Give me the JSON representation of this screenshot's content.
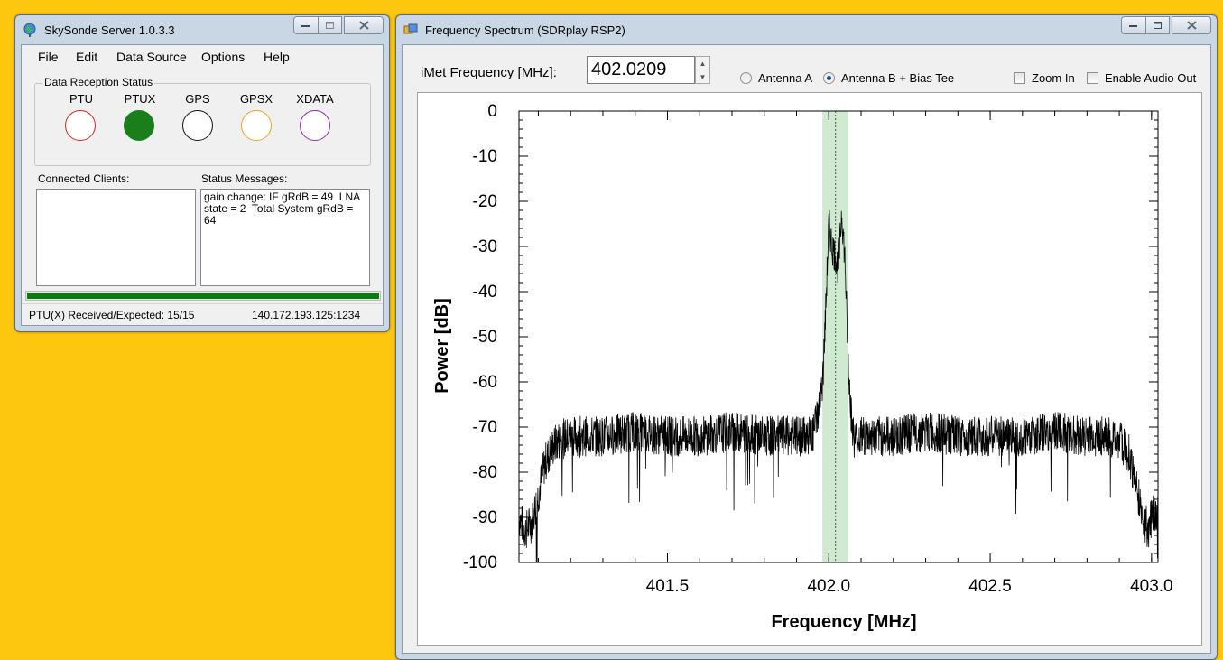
{
  "server_window": {
    "title": "SkySonde Server 1.0.3.3",
    "menu": [
      "File",
      "Edit",
      "Data Source",
      "Options",
      "Help"
    ],
    "group_label": "Data Reception Status",
    "indicators": [
      {
        "label": "PTU",
        "color": "#e0201b",
        "active": false
      },
      {
        "label": "PTUX",
        "color": "#1a7f1a",
        "active": true
      },
      {
        "label": "GPS",
        "color": "#111111",
        "active": false
      },
      {
        "label": "GPSX",
        "color": "#f0a020",
        "active": false
      },
      {
        "label": "XDATA",
        "color": "#8e2aa0",
        "active": false
      }
    ],
    "connected_clients_label": "Connected Clients:",
    "status_messages_label": "Status Messages:",
    "status_message": "gain change: IF gRdB = 49  LNA\nstate = 2  Total System gRdB =\n64",
    "progress": 1.0,
    "progress_color": "#0d7a0d",
    "status_left": "PTU(X) Received/Expected: 15/15",
    "status_right": "140.172.193.125:1234"
  },
  "spectrum_window": {
    "title": "Frequency Spectrum (SDRplay RSP2)",
    "freq_label": "iMet Frequency [MHz]:",
    "freq_value": "402.0209",
    "antenna_a": "Antenna A",
    "antenna_b": "Antenna B + Bias Tee",
    "selected_antenna": "Antenna B + Bias Tee",
    "zoom_in": "Zoom In",
    "enable_audio": "Enable Audio Out"
  },
  "chart_data": {
    "type": "line",
    "xlabel": "Frequency [MHz]",
    "ylabel": "Power [dB]",
    "xlim": [
      401.04,
      403.02
    ],
    "ylim": [
      -100,
      0
    ],
    "x_ticks": [
      401.5,
      402.0,
      402.5,
      403.0
    ],
    "x_tick_labels": [
      "401.5",
      "402.0",
      "402.5",
      "403.0"
    ],
    "y_ticks": [
      0,
      -10,
      -20,
      -30,
      -40,
      -50,
      -60,
      -70,
      -80,
      -90,
      -100
    ],
    "y_tick_labels": [
      "0",
      "-10",
      "-20",
      "-30",
      "-40",
      "-50",
      "-60",
      "-70",
      "-80",
      "-90",
      "-100"
    ],
    "marker_frequency": 402.0209,
    "highlight_band": [
      401.98,
      402.06
    ],
    "highlight_color": "#c8e6c9",
    "line_color": "#000000",
    "series": [
      {
        "x": [
          401.04,
          401.06,
          401.08,
          401.1,
          401.12,
          401.14,
          401.16,
          401.2,
          401.3,
          401.4,
          401.5,
          401.6,
          401.7,
          401.8,
          401.9,
          401.95,
          401.98,
          401.99,
          402.0,
          402.01,
          402.02,
          402.03,
          402.04,
          402.05,
          402.06,
          402.07,
          402.08,
          402.1,
          402.2,
          402.3,
          402.4,
          402.5,
          402.6,
          402.7,
          402.8,
          402.85,
          402.9,
          402.93,
          402.95,
          402.97,
          402.99,
          403.0,
          403.02
        ],
        "values": [
          -90,
          -93,
          -91,
          -85,
          -78,
          -75,
          -73,
          -72,
          -72,
          -71,
          -72,
          -72,
          -71,
          -72,
          -72,
          -72,
          -62,
          -45,
          -25,
          -30,
          -32,
          -35,
          -22,
          -33,
          -55,
          -68,
          -73,
          -72,
          -72,
          -71,
          -72,
          -72,
          -72,
          -71,
          -72,
          -72,
          -73,
          -76,
          -82,
          -89,
          -93,
          -90,
          -88
        ]
      }
    ]
  }
}
